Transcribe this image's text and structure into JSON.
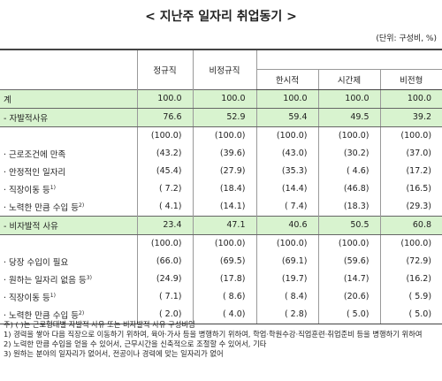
{
  "title": "< 지난주 일자리 취업동기 >",
  "unit": "(단위: 구성비, %)",
  "header": {
    "columns": [
      "정규직",
      "비정규직"
    ],
    "subcolumns": [
      "한시적",
      "시간제",
      "비전형"
    ]
  },
  "table": {
    "rows": [
      {
        "label": "계",
        "highlight": true,
        "values": [
          "100.0",
          "100.0",
          "100.0",
          "100.0",
          "100.0"
        ]
      },
      {
        "label": "- 자발적사유",
        "highlight": true,
        "values": [
          "76.6",
          "52.9",
          "59.4",
          "49.5",
          "39.2"
        ]
      },
      {
        "values": [
          "(100.0)",
          "(100.0)",
          "(100.0)",
          "(100.0)",
          "(100.0)"
        ]
      },
      {
        "label": "· 근로조건에 만족",
        "values": [
          "(43.2)",
          "(39.6)",
          "(43.0)",
          "(30.2)",
          "(37.0)"
        ]
      },
      {
        "label": "· 안정적인 일자리",
        "values": [
          "(45.4)",
          "(27.9)",
          "(35.3)",
          "( 4.6)",
          "(17.2)"
        ]
      },
      {
        "label": "· 직장이동 등",
        "note": "1)",
        "values": [
          "( 7.2)",
          "(18.4)",
          "(14.4)",
          "(46.8)",
          "(16.5)"
        ]
      },
      {
        "label": "· 노력한 만큼 수입 등",
        "note": "2)",
        "values": [
          "( 4.1)",
          "(14.1)",
          "( 7.4)",
          "(18.3)",
          "(29.3)"
        ]
      },
      {
        "label": "- 비자발적 사유",
        "highlight": true,
        "values": [
          "23.4",
          "47.1",
          "40.6",
          "50.5",
          "60.8"
        ]
      },
      {
        "values": [
          "(100.0)",
          "(100.0)",
          "(100.0)",
          "(100.0)",
          "(100.0)"
        ]
      },
      {
        "label": "· 당장 수입이 필요",
        "values": [
          "(66.0)",
          "(69.5)",
          "(69.1)",
          "(59.6)",
          "(72.9)"
        ]
      },
      {
        "label": "· 원하는 일자리 없음 등",
        "note": "3)",
        "values": [
          "(24.9)",
          "(17.8)",
          "(19.7)",
          "(14.7)",
          "(16.2)"
        ]
      },
      {
        "label": "· 직장이동 등",
        "note": "1)",
        "values": [
          "( 7.1)",
          "( 8.6)",
          "( 8.4)",
          "(20.6)",
          "( 5.9)"
        ]
      },
      {
        "label": "· 노력한 만큼 수입 등",
        "note": "2)",
        "values": [
          "( 2.0)",
          "( 4.0)",
          "( 2.8)",
          "( 5.0)",
          "( 5.0)"
        ]
      }
    ]
  },
  "footnotes": [
    "주) ( )는 근로형태별 자발적 사유 또는 비자발적 사유 구성비임",
    "1) 경력을 쌓아 다음 직장으로 이동하기 위하여, 육아·가사 등을 병행하기 위하여, 학업·학원수강·직업훈련·취업준비 등을 병행하기 위하여",
    "2) 노력한 만큼 수입을 얻을 수 있어서, 근무시간을 신축적으로 조절할 수 있어서, 기타",
    "3) 원하는 분야의 일자리가 없어서, 전공이나 경력에 맞는 일자리가 없어"
  ]
}
